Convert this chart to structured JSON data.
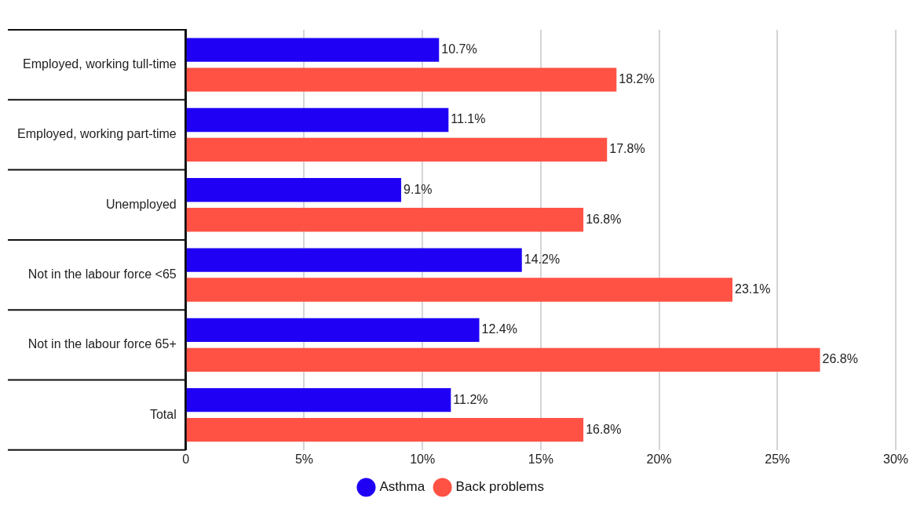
{
  "chart_data": {
    "type": "bar",
    "orientation": "horizontal",
    "categories": [
      "Employed, working tull-time",
      "Employed, working part-time",
      "Unemployed",
      "Not in the labour force <65",
      "Not in the labour force 65+",
      "Total"
    ],
    "series": [
      {
        "name": "Asthma",
        "color": "#1f00f5",
        "values": [
          10.7,
          11.1,
          9.1,
          14.2,
          12.4,
          11.2
        ],
        "value_labels": [
          "10.7%",
          "11.1%",
          "9.1%",
          "14.2%",
          "12.4%",
          "11.2%"
        ]
      },
      {
        "name": "Back problems",
        "color": "#ff5245",
        "values": [
          18.2,
          17.8,
          16.8,
          23.1,
          26.8,
          16.8
        ],
        "value_labels": [
          "18.2%",
          "17.8%",
          "16.8%",
          "23.1%",
          "26.8%",
          "16.8%"
        ]
      }
    ],
    "xlim": [
      0,
      30
    ],
    "xticks": [
      {
        "value": 0,
        "label": "0"
      },
      {
        "value": 5,
        "label": "5%"
      },
      {
        "value": 10,
        "label": "10%"
      },
      {
        "value": 15,
        "label": "15%"
      },
      {
        "value": 20,
        "label": "20%"
      },
      {
        "value": 25,
        "label": "25%"
      },
      {
        "value": 30,
        "label": "30%"
      }
    ],
    "grid": "x",
    "legend": "bottom"
  }
}
